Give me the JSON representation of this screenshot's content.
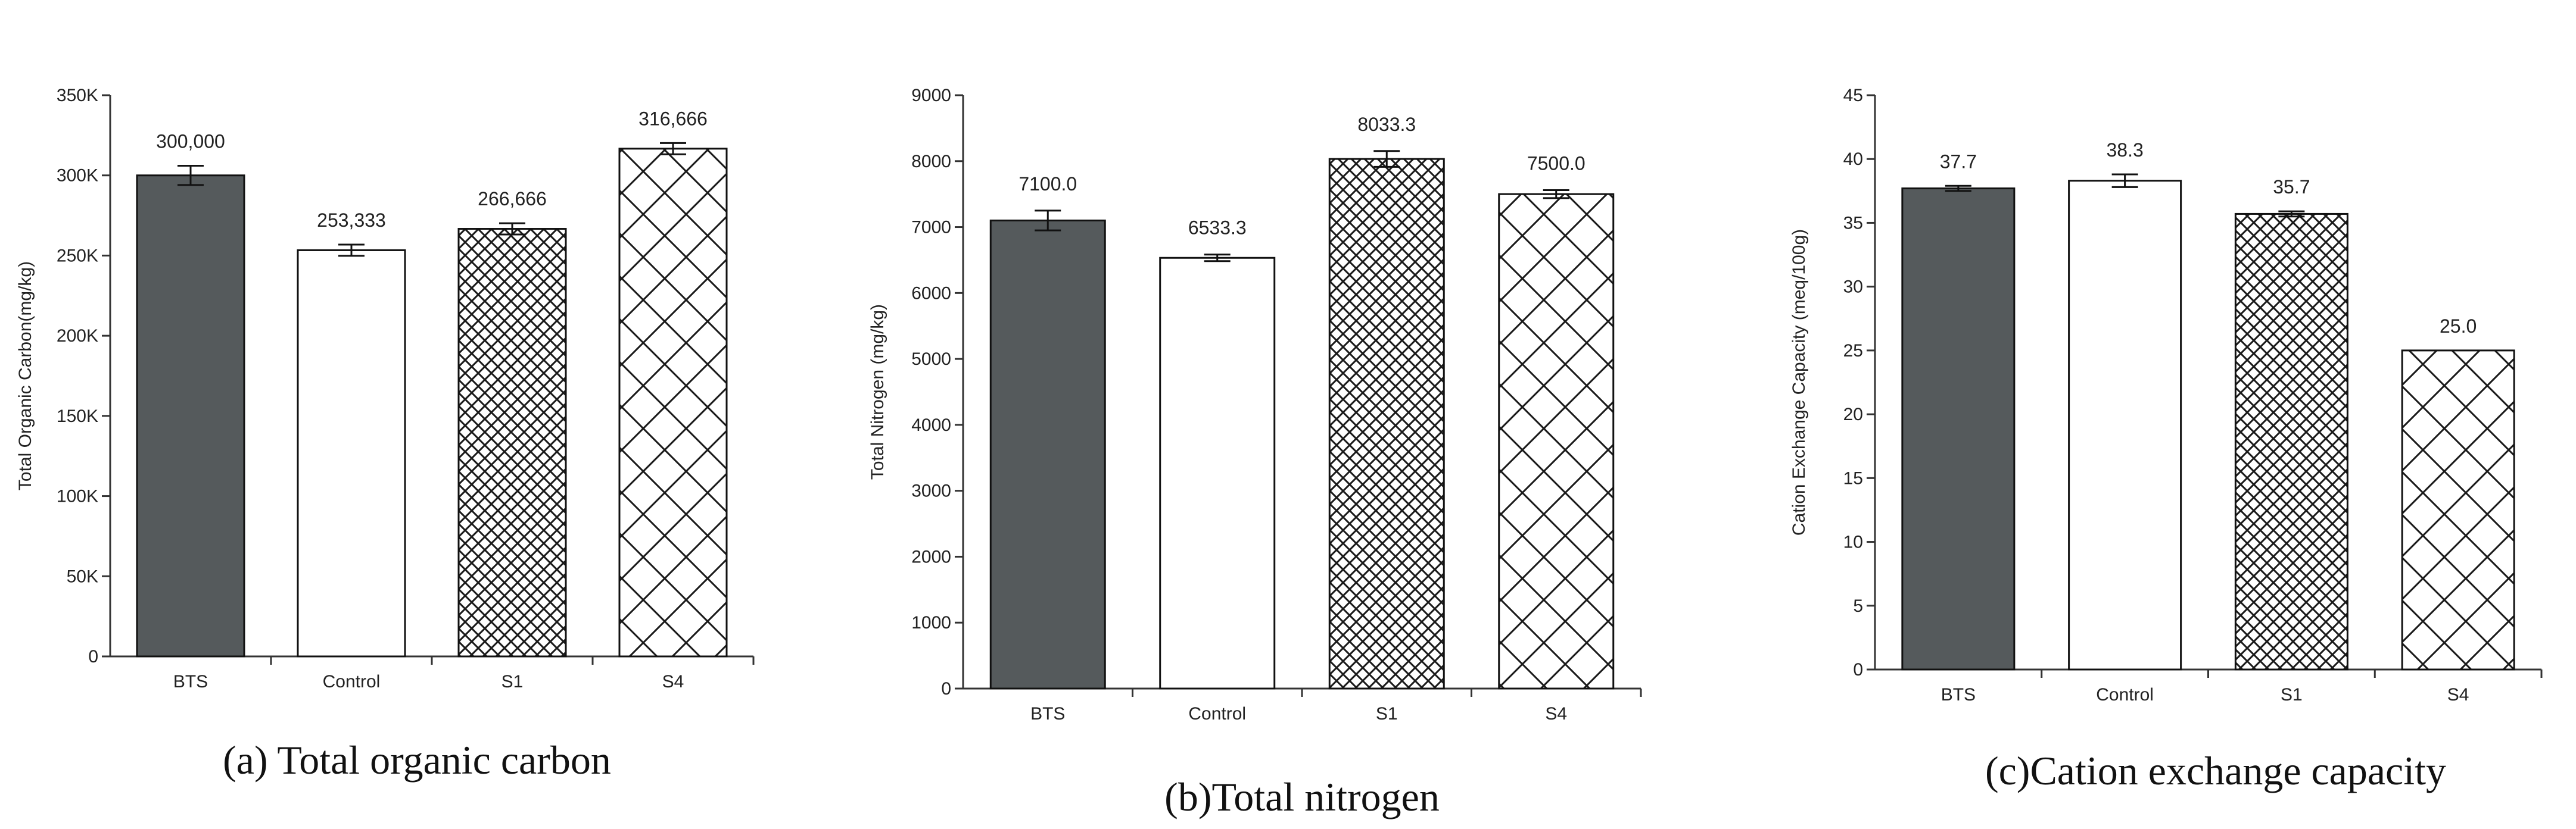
{
  "chart_data": [
    {
      "type": "bar",
      "caption": "(a) Total organic carbon",
      "ylabel": "Total Organic Carbon(mg/kg)",
      "categories": [
        "BTS",
        "Control",
        "S1",
        "S4"
      ],
      "values": [
        300000,
        253333,
        266666,
        316666
      ],
      "error": [
        6000,
        3500,
        3500,
        3500
      ],
      "data_labels": [
        "300,000",
        "253,333",
        "266,666",
        "316,666"
      ],
      "ylim": [
        0,
        350000
      ],
      "yticks": [
        0,
        50000,
        100000,
        150000,
        200000,
        250000,
        300000,
        350000
      ],
      "ytick_labels": [
        "0",
        "50K",
        "100K",
        "150K",
        "200K",
        "250K",
        "300K",
        "350K"
      ],
      "fills": [
        "solid",
        "white",
        "fine-crosshatch",
        "coarse-crosshatch"
      ],
      "grid": false
    },
    {
      "type": "bar",
      "caption": "(b)Total nitrogen",
      "ylabel": "Total Nitrogen (mg/kg)",
      "categories": [
        "BTS",
        "Control",
        "S1",
        "S4"
      ],
      "values": [
        7100.0,
        6533.3,
        8033.3,
        7500.0
      ],
      "error": [
        150,
        50,
        120,
        60
      ],
      "data_labels": [
        "7100.0",
        "6533.3",
        "8033.3",
        "7500.0"
      ],
      "ylim": [
        0,
        9000
      ],
      "yticks": [
        0,
        1000,
        2000,
        3000,
        4000,
        5000,
        6000,
        7000,
        8000,
        9000
      ],
      "ytick_labels": [
        "0",
        "1000",
        "2000",
        "3000",
        "4000",
        "5000",
        "6000",
        "7000",
        "8000",
        "9000"
      ],
      "fills": [
        "solid",
        "white",
        "fine-crosshatch",
        "coarse-crosshatch"
      ],
      "grid": false
    },
    {
      "type": "bar",
      "caption": "(c)Cation exchange capacity",
      "ylabel": "Cation Exchange Capacity (meq/100g)",
      "categories": [
        "BTS",
        "Control",
        "S1",
        "S4"
      ],
      "values": [
        37.7,
        38.3,
        35.7,
        25.0
      ],
      "error": [
        0.2,
        0.5,
        0.2,
        0
      ],
      "data_labels": [
        "37.7",
        "38.3",
        "35.7",
        "25.0"
      ],
      "ylim": [
        0,
        45
      ],
      "yticks": [
        0,
        5,
        10,
        15,
        20,
        25,
        30,
        35,
        40,
        45
      ],
      "ytick_labels": [
        "0",
        "5",
        "10",
        "15",
        "20",
        "25",
        "30",
        "35",
        "40",
        "45"
      ],
      "fills": [
        "solid",
        "white",
        "fine-crosshatch",
        "coarse-crosshatch"
      ],
      "grid": false
    }
  ],
  "colors": {
    "solid_bar": "#555a5c",
    "hatch_line": "#1a1a1a",
    "axis": "#333333",
    "bar_outline": "#111111"
  }
}
